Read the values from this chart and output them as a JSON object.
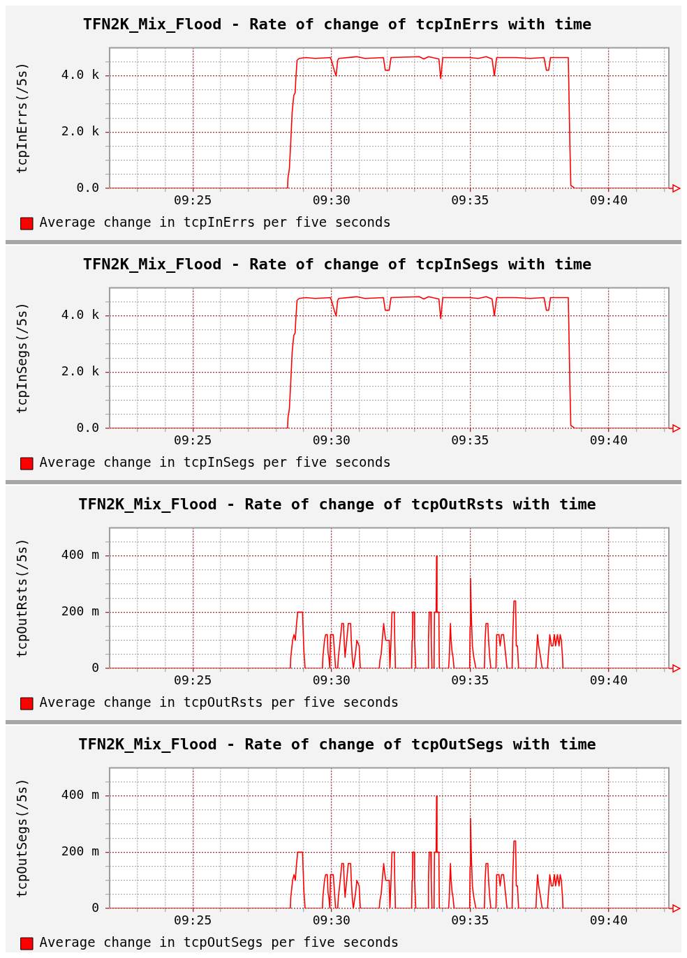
{
  "chart_data": [
    {
      "type": "line",
      "title": "TFN2K_Mix_Flood - Rate of change of tcpInErrs with time",
      "ylabel": "tcpInErrs(/5s)",
      "x": [
        9.36667,
        9.47361,
        9.47389,
        9.47472,
        9.47542,
        9.47639,
        9.47736,
        9.47819,
        9.47861,
        9.47931,
        9.48056,
        9.48472,
        9.49028,
        9.49931,
        9.50028,
        9.50167,
        9.50278,
        9.50375,
        9.50444,
        9.51528,
        9.52014,
        9.53125,
        9.53236,
        9.53472,
        9.53583,
        9.55278,
        9.55556,
        9.55833,
        9.56458,
        9.56569,
        9.56694,
        9.58333,
        9.58819,
        9.59306,
        9.59653,
        9.59792,
        9.59931,
        9.61111,
        9.61944,
        9.62778,
        9.62917,
        9.63056,
        9.63167,
        9.64236,
        9.64264,
        9.64333,
        9.64389,
        9.64514,
        9.64611,
        9.7028
      ],
      "series": [
        {
          "name": "Average change in tcpInErrs per five seconds",
          "color": "#ff0000",
          "values": [
            0,
            0,
            390,
            700,
            1500,
            2700,
            3300,
            3400,
            3900,
            4550,
            4620,
            4650,
            4620,
            4650,
            4500,
            4200,
            4000,
            4550,
            4620,
            4680,
            4620,
            4650,
            4200,
            4200,
            4650,
            4680,
            4600,
            4680,
            4600,
            3900,
            4650,
            4650,
            4620,
            4680,
            4600,
            4000,
            4650,
            4650,
            4620,
            4650,
            4200,
            4200,
            4650,
            4650,
            3800,
            1500,
            100,
            60,
            0,
            0
          ]
        }
      ],
      "xlim": [
        9.36667,
        9.7028
      ],
      "xticks": [
        {
          "value": 9.38333,
          "label": null
        },
        {
          "value": 9.4,
          "label": null
        },
        {
          "value": 9.41667,
          "label": "09:25"
        },
        {
          "value": 9.43333,
          "label": null
        },
        {
          "value": 9.45,
          "label": null
        },
        {
          "value": 9.46667,
          "label": null
        },
        {
          "value": 9.48333,
          "label": null
        },
        {
          "value": 9.5,
          "label": "09:30"
        },
        {
          "value": 9.51667,
          "label": null
        },
        {
          "value": 9.53333,
          "label": null
        },
        {
          "value": 9.55,
          "label": null
        },
        {
          "value": 9.56667,
          "label": null
        },
        {
          "value": 9.58333,
          "label": "09:35"
        },
        {
          "value": 9.6,
          "label": null
        },
        {
          "value": 9.61667,
          "label": null
        },
        {
          "value": 9.63333,
          "label": null
        },
        {
          "value": 9.65,
          "label": null
        },
        {
          "value": 9.66667,
          "label": "09:40"
        },
        {
          "value": 9.68333,
          "label": null
        },
        {
          "value": 9.7,
          "label": null
        }
      ],
      "ylim": [
        0,
        5000
      ],
      "yticks": [
        {
          "value": 0,
          "label": "0.0"
        },
        {
          "value": 500,
          "label": null
        },
        {
          "value": 1000,
          "label": null
        },
        {
          "value": 1500,
          "label": null
        },
        {
          "value": 2000,
          "label": "2.0 k"
        },
        {
          "value": 2500,
          "label": null
        },
        {
          "value": 3000,
          "label": null
        },
        {
          "value": 3500,
          "label": null
        },
        {
          "value": 4000,
          "label": "4.0 k"
        },
        {
          "value": 4500,
          "label": null
        }
      ],
      "grid": true,
      "legend": "bottom left"
    },
    {
      "type": "line",
      "title": "TFN2K_Mix_Flood - Rate of change of tcpInSegs with time",
      "ylabel": "tcpInSegs(/5s)",
      "x": [
        9.36667,
        9.47361,
        9.47389,
        9.47472,
        9.47542,
        9.47639,
        9.47736,
        9.47819,
        9.47861,
        9.47931,
        9.48056,
        9.48472,
        9.49028,
        9.49931,
        9.50028,
        9.50167,
        9.50278,
        9.50375,
        9.50444,
        9.51528,
        9.52014,
        9.53125,
        9.53236,
        9.53472,
        9.53583,
        9.55278,
        9.55556,
        9.55833,
        9.56458,
        9.56569,
        9.56694,
        9.58333,
        9.58819,
        9.59306,
        9.59653,
        9.59792,
        9.59931,
        9.61111,
        9.61944,
        9.62778,
        9.62917,
        9.63056,
        9.63167,
        9.64236,
        9.64264,
        9.64333,
        9.64389,
        9.64514,
        9.64611,
        9.7028
      ],
      "series": [
        {
          "name": "Average change in tcpInSegs per five seconds",
          "color": "#ff0000",
          "values": [
            0,
            0,
            390,
            700,
            1500,
            2700,
            3300,
            3400,
            3900,
            4550,
            4620,
            4650,
            4620,
            4650,
            4500,
            4200,
            4000,
            4550,
            4620,
            4680,
            4620,
            4650,
            4200,
            4200,
            4650,
            4680,
            4600,
            4680,
            4600,
            3900,
            4650,
            4650,
            4620,
            4680,
            4600,
            4000,
            4650,
            4650,
            4620,
            4650,
            4200,
            4200,
            4650,
            4650,
            3800,
            1500,
            100,
            60,
            0,
            0
          ]
        }
      ],
      "xlim": [
        9.36667,
        9.7028
      ],
      "xticks": [
        {
          "value": 9.38333,
          "label": null
        },
        {
          "value": 9.4,
          "label": null
        },
        {
          "value": 9.41667,
          "label": "09:25"
        },
        {
          "value": 9.43333,
          "label": null
        },
        {
          "value": 9.45,
          "label": null
        },
        {
          "value": 9.46667,
          "label": null
        },
        {
          "value": 9.48333,
          "label": null
        },
        {
          "value": 9.5,
          "label": "09:30"
        },
        {
          "value": 9.51667,
          "label": null
        },
        {
          "value": 9.53333,
          "label": null
        },
        {
          "value": 9.55,
          "label": null
        },
        {
          "value": 9.56667,
          "label": null
        },
        {
          "value": 9.58333,
          "label": "09:35"
        },
        {
          "value": 9.6,
          "label": null
        },
        {
          "value": 9.61667,
          "label": null
        },
        {
          "value": 9.63333,
          "label": null
        },
        {
          "value": 9.65,
          "label": null
        },
        {
          "value": 9.66667,
          "label": "09:40"
        },
        {
          "value": 9.68333,
          "label": null
        },
        {
          "value": 9.7,
          "label": null
        }
      ],
      "ylim": [
        0,
        5000
      ],
      "yticks": [
        {
          "value": 0,
          "label": "0.0"
        },
        {
          "value": 500,
          "label": null
        },
        {
          "value": 1000,
          "label": null
        },
        {
          "value": 1500,
          "label": null
        },
        {
          "value": 2000,
          "label": "2.0 k"
        },
        {
          "value": 2500,
          "label": null
        },
        {
          "value": 3000,
          "label": null
        },
        {
          "value": 3500,
          "label": null
        },
        {
          "value": 4000,
          "label": "4.0 k"
        },
        {
          "value": 4500,
          "label": null
        }
      ],
      "grid": true,
      "legend": "bottom left"
    },
    {
      "type": "line",
      "title": "TFN2K_Mix_Flood - Rate of change of tcpOutRsts with time",
      "ylabel": "tcpOutRsts(/5s)",
      "x": [
        9.36667,
        9.47528,
        9.47556,
        9.47667,
        9.4775,
        9.47833,
        9.47889,
        9.47972,
        9.48264,
        9.48292,
        9.48347,
        9.48417,
        9.49458,
        9.49486,
        9.49583,
        9.49653,
        9.4975,
        9.49792,
        9.49861,
        9.49903,
        9.49944,
        9.50111,
        9.50181,
        9.5025,
        9.50375,
        9.50417,
        9.50528,
        9.50625,
        9.50722,
        9.50764,
        9.50819,
        9.50917,
        9.51014,
        9.51153,
        9.51194,
        9.5125,
        9.51319,
        9.51389,
        9.51458,
        9.51528,
        9.51667,
        9.51736,
        9.52875,
        9.52917,
        9.52986,
        9.53056,
        9.53139,
        9.53194,
        9.53264,
        9.53472,
        9.53514,
        9.53583,
        9.53639,
        9.53778,
        9.53806,
        9.53847,
        9.54819,
        9.54847,
        9.54875,
        9.54972,
        9.55,
        9.55069,
        9.55806,
        9.55833,
        9.55875,
        9.55972,
        9.56,
        9.56042,
        9.56167,
        9.56194,
        9.56292,
        9.56319,
        9.56347,
        9.56458,
        9.56486,
        9.57042,
        9.57083,
        9.57153,
        9.57194,
        9.5725,
        9.57306,
        9.57375,
        9.58306,
        9.58333,
        9.58361,
        9.58403,
        9.58472,
        9.58556,
        9.58681,
        9.59194,
        9.59236,
        9.59292,
        9.59403,
        9.59444,
        9.59514,
        9.59583,
        9.59889,
        9.59931,
        9.60069,
        9.60139,
        9.60222,
        9.60347,
        9.60417,
        9.60486,
        9.60556,
        9.60861,
        9.60903,
        9.60972,
        9.61069,
        9.61111,
        9.61181,
        9.6125,
        9.62292,
        9.62333,
        9.62389,
        9.62458,
        9.62569,
        9.62667,
        9.62986,
        9.63028,
        9.63125,
        9.63222,
        9.63306,
        9.63403,
        9.63472,
        9.63583,
        9.63681,
        9.6375,
        9.63819,
        9.63889,
        9.63917,
        9.7028
      ],
      "series": [
        {
          "name": "Average change in tcpOutRsts per five seconds",
          "color": "#ff0000",
          "values": [
            0,
            0,
            40,
            100,
            120,
            100,
            150,
            200,
            200,
            150,
            60,
            0,
            0,
            40,
            100,
            120,
            120,
            60,
            30,
            0,
            120,
            120,
            60,
            0,
            0,
            40,
            100,
            160,
            160,
            100,
            40,
            100,
            160,
            160,
            100,
            40,
            0,
            30,
            60,
            100,
            80,
            0,
            0,
            30,
            50,
            100,
            160,
            130,
            100,
            100,
            0,
            100,
            200,
            200,
            100,
            0,
            0,
            100,
            200,
            200,
            100,
            0,
            0,
            100,
            200,
            200,
            100,
            0,
            0,
            200,
            200,
            400,
            200,
            200,
            0,
            0,
            40,
            160,
            100,
            60,
            40,
            0,
            0,
            150,
            320,
            200,
            80,
            40,
            0,
            0,
            100,
            160,
            160,
            100,
            40,
            0,
            0,
            120,
            120,
            80,
            120,
            120,
            80,
            40,
            0,
            0,
            120,
            240,
            240,
            80,
            80,
            0,
            0,
            60,
            120,
            80,
            40,
            0,
            0,
            40,
            120,
            80,
            80,
            120,
            80,
            120,
            80,
            120,
            100,
            40,
            0,
            0
          ]
        }
      ],
      "xlim": [
        9.36667,
        9.7028
      ],
      "xticks": [
        {
          "value": 9.38333,
          "label": null
        },
        {
          "value": 9.4,
          "label": null
        },
        {
          "value": 9.41667,
          "label": "09:25"
        },
        {
          "value": 9.43333,
          "label": null
        },
        {
          "value": 9.45,
          "label": null
        },
        {
          "value": 9.46667,
          "label": null
        },
        {
          "value": 9.48333,
          "label": null
        },
        {
          "value": 9.5,
          "label": "09:30"
        },
        {
          "value": 9.51667,
          "label": null
        },
        {
          "value": 9.53333,
          "label": null
        },
        {
          "value": 9.55,
          "label": null
        },
        {
          "value": 9.56667,
          "label": null
        },
        {
          "value": 9.58333,
          "label": "09:35"
        },
        {
          "value": 9.6,
          "label": null
        },
        {
          "value": 9.61667,
          "label": null
        },
        {
          "value": 9.63333,
          "label": null
        },
        {
          "value": 9.65,
          "label": null
        },
        {
          "value": 9.66667,
          "label": "09:40"
        },
        {
          "value": 9.68333,
          "label": null
        },
        {
          "value": 9.7,
          "label": null
        }
      ],
      "ylim": [
        0,
        500
      ],
      "yticks": [
        0,
        {
          "value": 50,
          "label": null
        },
        {
          "value": 100,
          "label": null
        },
        {
          "value": 150,
          "label": null
        },
        {
          "value": 200,
          "label": "200 m"
        },
        {
          "value": 250,
          "label": null
        },
        {
          "value": 300,
          "label": null
        },
        {
          "value": 350,
          "label": null
        },
        {
          "value": 400,
          "label": "400 m"
        },
        {
          "value": 450,
          "label": null
        }
      ],
      "grid": true,
      "legend": "bottom left"
    },
    {
      "type": "line",
      "title": "TFN2K_Mix_Flood - Rate of change of tcpOutSegs with time",
      "ylabel": "tcpOutSegs(/5s)",
      "x": [
        9.36667,
        9.47528,
        9.47556,
        9.47667,
        9.4775,
        9.47833,
        9.47889,
        9.47972,
        9.48264,
        9.48292,
        9.48347,
        9.48417,
        9.49458,
        9.49486,
        9.49583,
        9.49653,
        9.4975,
        9.49792,
        9.49861,
        9.49903,
        9.49944,
        9.50111,
        9.50181,
        9.5025,
        9.50375,
        9.50417,
        9.50528,
        9.50625,
        9.50722,
        9.50764,
        9.50819,
        9.50917,
        9.51014,
        9.51153,
        9.51194,
        9.5125,
        9.51319,
        9.51389,
        9.51458,
        9.51528,
        9.51667,
        9.51736,
        9.52875,
        9.52917,
        9.52986,
        9.53056,
        9.53139,
        9.53194,
        9.53264,
        9.53472,
        9.53514,
        9.53583,
        9.53639,
        9.53778,
        9.53806,
        9.53847,
        9.54819,
        9.54847,
        9.54875,
        9.54972,
        9.55,
        9.55069,
        9.55806,
        9.55833,
        9.55875,
        9.55972,
        9.56,
        9.56042,
        9.56167,
        9.56194,
        9.56292,
        9.56319,
        9.56347,
        9.56458,
        9.56486,
        9.57042,
        9.57083,
        9.57153,
        9.57194,
        9.5725,
        9.57306,
        9.57375,
        9.58306,
        9.58333,
        9.58361,
        9.58403,
        9.58472,
        9.58556,
        9.58681,
        9.59194,
        9.59236,
        9.59292,
        9.59403,
        9.59444,
        9.59514,
        9.59583,
        9.59889,
        9.59931,
        9.60069,
        9.60139,
        9.60222,
        9.60347,
        9.60417,
        9.60486,
        9.60556,
        9.60861,
        9.60903,
        9.60972,
        9.61069,
        9.61111,
        9.61181,
        9.6125,
        9.62292,
        9.62333,
        9.62389,
        9.62458,
        9.62569,
        9.62667,
        9.62986,
        9.63028,
        9.63125,
        9.63222,
        9.63306,
        9.63403,
        9.63472,
        9.63583,
        9.63681,
        9.6375,
        9.63819,
        9.63889,
        9.63917,
        9.7028
      ],
      "series": [
        {
          "name": "Average change in tcpOutSegs per five seconds",
          "color": "#ff0000",
          "values": [
            0,
            0,
            40,
            100,
            120,
            100,
            150,
            200,
            200,
            150,
            60,
            0,
            0,
            40,
            100,
            120,
            120,
            60,
            30,
            0,
            120,
            120,
            60,
            0,
            0,
            40,
            100,
            160,
            160,
            100,
            40,
            100,
            160,
            160,
            100,
            40,
            0,
            30,
            60,
            100,
            80,
            0,
            0,
            30,
            50,
            100,
            160,
            130,
            100,
            100,
            0,
            100,
            200,
            200,
            100,
            0,
            0,
            100,
            200,
            200,
            100,
            0,
            0,
            100,
            200,
            200,
            100,
            0,
            0,
            200,
            200,
            400,
            200,
            200,
            0,
            0,
            40,
            160,
            100,
            60,
            40,
            0,
            0,
            150,
            320,
            200,
            80,
            40,
            0,
            0,
            100,
            160,
            160,
            100,
            40,
            0,
            0,
            120,
            120,
            80,
            120,
            120,
            80,
            40,
            0,
            0,
            120,
            240,
            240,
            80,
            80,
            0,
            0,
            60,
            120,
            80,
            40,
            0,
            0,
            40,
            120,
            80,
            80,
            120,
            80,
            120,
            80,
            120,
            100,
            40,
            0,
            0
          ]
        }
      ],
      "xlim": [
        9.36667,
        9.7028
      ],
      "xticks": [
        {
          "value": 9.38333,
          "label": null
        },
        {
          "value": 9.4,
          "label": null
        },
        {
          "value": 9.41667,
          "label": "09:25"
        },
        {
          "value": 9.43333,
          "label": null
        },
        {
          "value": 9.45,
          "label": null
        },
        {
          "value": 9.46667,
          "label": null
        },
        {
          "value": 9.48333,
          "label": null
        },
        {
          "value": 9.5,
          "label": "09:30"
        },
        {
          "value": 9.51667,
          "label": null
        },
        {
          "value": 9.53333,
          "label": null
        },
        {
          "value": 9.55,
          "label": null
        },
        {
          "value": 9.56667,
          "label": null
        },
        {
          "value": 9.58333,
          "label": "09:35"
        },
        {
          "value": 9.6,
          "label": null
        },
        {
          "value": 9.61667,
          "label": null
        },
        {
          "value": 9.63333,
          "label": null
        },
        {
          "value": 9.65,
          "label": null
        },
        {
          "value": 9.66667,
          "label": "09:40"
        },
        {
          "value": 9.68333,
          "label": null
        },
        {
          "value": 9.7,
          "label": null
        }
      ],
      "ylim": [
        0,
        500
      ],
      "yticks": [
        0,
        {
          "value": 50,
          "label": null
        },
        {
          "value": 100,
          "label": null
        },
        {
          "value": 150,
          "label": null
        },
        {
          "value": 200,
          "label": "200 m"
        },
        {
          "value": 250,
          "label": null
        },
        {
          "value": 300,
          "label": null
        },
        {
          "value": 350,
          "label": null
        },
        {
          "value": 400,
          "label": "400 m"
        },
        {
          "value": 450,
          "label": null
        }
      ],
      "grid": true,
      "legend": "bottom left"
    }
  ]
}
